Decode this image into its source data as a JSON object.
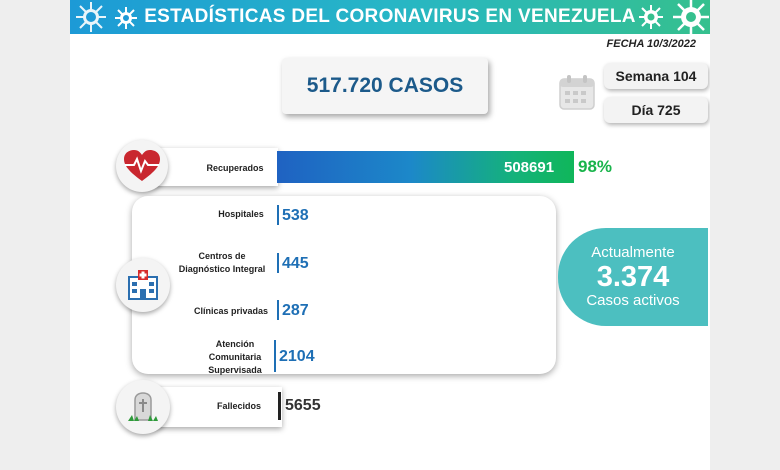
{
  "header": {
    "title": "ESTADÍSTICAS DEL CORONAVIRUS EN VENEZUELA",
    "date": "FECHA 10/3/2022"
  },
  "summary": {
    "total_cases": "517.720 CASOS",
    "week": "Semana 104",
    "day": "Día 725"
  },
  "recovered": {
    "label": "Recuperados",
    "value": "508691",
    "percent": "98%"
  },
  "care": [
    {
      "label": "Hospitales",
      "value": "538"
    },
    {
      "label": "Centros de Diagnóstico Integral",
      "value": "445"
    },
    {
      "label": "Clínicas privadas",
      "value": "287"
    },
    {
      "label": "Atención Comunitaria Supervisada",
      "value": "2104"
    }
  ],
  "active": {
    "line1": "Actualmente",
    "value": "3.374",
    "line3": "Casos activos"
  },
  "deaths": {
    "label": "Fallecidos",
    "value": "5655"
  },
  "colors": {
    "banner_start": "#1d9ad6",
    "banner_end": "#35c08e",
    "active_bg": "#4cbfc0",
    "value_blue": "#1e6fb5",
    "recovered_green": "#19b44b"
  },
  "icons": [
    "virus-icon",
    "calendar-icon",
    "heart-pulse-icon",
    "hospital-icon",
    "tombstone-icon"
  ]
}
